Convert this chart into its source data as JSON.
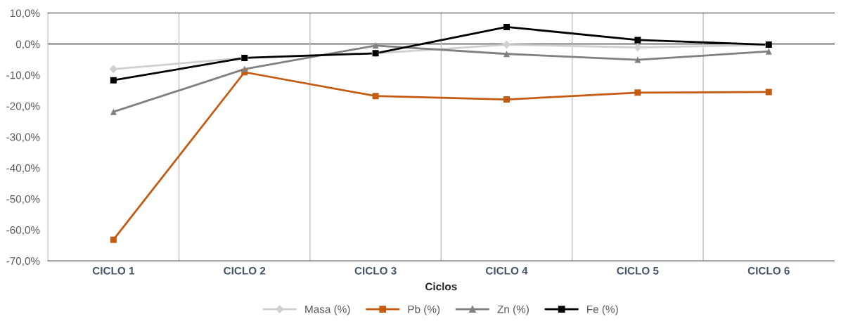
{
  "chart_data": {
    "type": "line",
    "xlabel": "Ciclos",
    "categories": [
      "CICLO 1",
      "CICLO 2",
      "CICLO 3",
      "CICLO 4",
      "CICLO 5",
      "CICLO 6"
    ],
    "series": [
      {
        "name": "Masa (%)",
        "color": "#d0d0d0",
        "marker": "diamond",
        "values": [
          -8.1,
          -4.5,
          -3.0,
          -0.2,
          -1.1,
          -0.3
        ]
      },
      {
        "name": "Pb (%)",
        "color": "#c55a11",
        "marker": "square",
        "values": [
          -63.2,
          -9.1,
          -16.8,
          -17.9,
          -15.7,
          -15.5
        ]
      },
      {
        "name": "Zn (%)",
        "color": "#808080",
        "marker": "triangle",
        "values": [
          -21.9,
          -8.1,
          -0.5,
          -3.2,
          -5.1,
          -2.4
        ]
      },
      {
        "name": "Fe (%)",
        "color": "#000000",
        "marker": "square",
        "values": [
          -11.7,
          -4.5,
          -3.0,
          5.5,
          1.3,
          -0.2
        ]
      }
    ],
    "ylim": [
      -70,
      10
    ],
    "yticks": [
      {
        "value": -70,
        "label": "-70,0%"
      },
      {
        "value": -60,
        "label": "-60,0%"
      },
      {
        "value": -50,
        "label": "-50,0%"
      },
      {
        "value": -40,
        "label": "-40,0%"
      },
      {
        "value": -30,
        "label": "-30,0%"
      },
      {
        "value": -20,
        "label": "-20,0%"
      },
      {
        "value": -10,
        "label": "-10,0%"
      },
      {
        "value": 0,
        "label": "0,0%"
      },
      {
        "value": 10,
        "label": "10,0%"
      }
    ],
    "grid": "x",
    "legend": "bottom",
    "line_style": "solid"
  }
}
